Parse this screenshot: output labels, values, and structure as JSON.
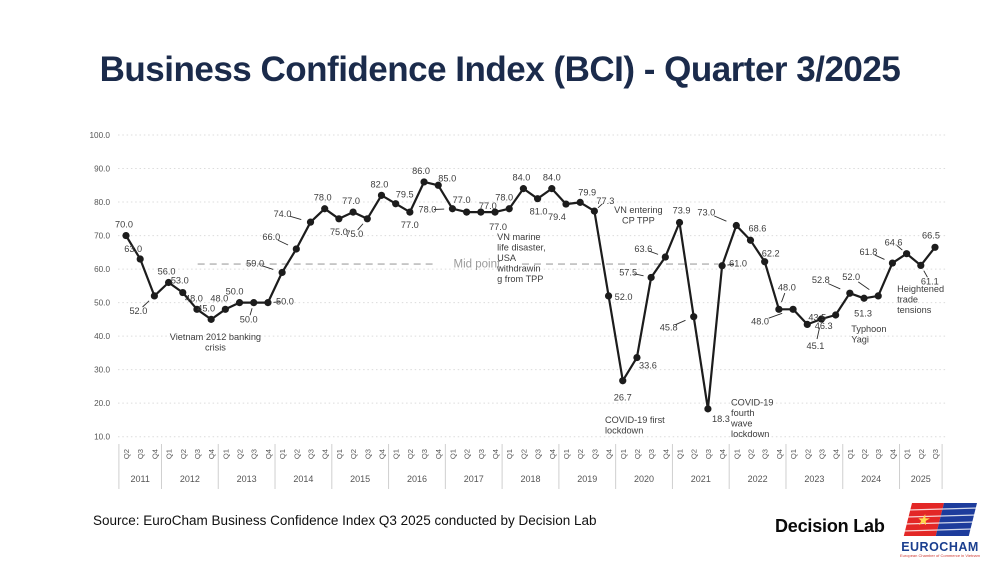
{
  "title": "Business Confidence Index (BCI) - Quarter 3/2025",
  "source_text": "Source: EuroCham Business Confidence Index Q3 2025 conducted by Decision Lab",
  "footer": {
    "decision_lab": "Decision Lab",
    "eurocham": "EUROCHAM",
    "eurocham_tagline": "European Chamber of Commerce in Vietnam"
  },
  "colors": {
    "title": "#1b2b4b",
    "line": "#1c1c1c",
    "point": "#1c1c1c",
    "data_label": "#3d3d3d",
    "annotation": "#3c3c3c",
    "grid": "#dcdcdc",
    "axis_text": "#555555",
    "year_separator": "#cfcfcf",
    "midline": "#bdbdbd",
    "midline_text": "#9b9b9b",
    "eurocham_blue": "#1b3f8f",
    "flag_red": "#e32726",
    "flag_yellow": "#ffd84d",
    "flag_blue": "#1d3c9c",
    "tagline_red": "#d03a32"
  },
  "chart_data": {
    "type": "line",
    "title": "Business Confidence Index (BCI) - Quarter 3/2025",
    "xlabel": "",
    "ylabel": "",
    "ylim": [
      10,
      100
    ],
    "yticks": [
      100,
      90,
      80,
      70,
      60,
      50,
      40,
      30,
      20,
      10
    ],
    "grid": "dotted-horizontal",
    "legend": "none",
    "midline": {
      "label": "Mid point",
      "value": 61.5,
      "segments": [
        [
          5.05,
          21.6
        ],
        [
          27.9,
          41.75
        ]
      ],
      "label_x": 24.72
    },
    "years": [
      {
        "label": "2011",
        "quarters": [
          "Q2",
          "Q3",
          "Q4"
        ]
      },
      {
        "label": "2012",
        "quarters": [
          "Q1",
          "Q2",
          "Q3",
          "Q4"
        ]
      },
      {
        "label": "2013",
        "quarters": [
          "Q1",
          "Q2",
          "Q3",
          "Q4"
        ]
      },
      {
        "label": "2014",
        "quarters": [
          "Q1",
          "Q2",
          "Q3",
          "Q4"
        ]
      },
      {
        "label": "2015",
        "quarters": [
          "Q1",
          "Q2",
          "Q3",
          "Q4"
        ]
      },
      {
        "label": "2016",
        "quarters": [
          "Q1",
          "Q2",
          "Q3",
          "Q4"
        ]
      },
      {
        "label": "2017",
        "quarters": [
          "Q1",
          "Q2",
          "Q3",
          "Q4"
        ]
      },
      {
        "label": "2018",
        "quarters": [
          "Q1",
          "Q2",
          "Q3",
          "Q4"
        ]
      },
      {
        "label": "2019",
        "quarters": [
          "Q1",
          "Q2",
          "Q3",
          "Q4"
        ]
      },
      {
        "label": "2020",
        "quarters": [
          "Q1",
          "Q2",
          "Q3",
          "Q4"
        ]
      },
      {
        "label": "2021",
        "quarters": [
          "Q1",
          "Q2",
          "Q3",
          "Q4"
        ]
      },
      {
        "label": "2022",
        "quarters": [
          "Q1",
          "Q2",
          "Q3",
          "Q4"
        ]
      },
      {
        "label": "2023",
        "quarters": [
          "Q1",
          "Q2",
          "Q3",
          "Q4"
        ]
      },
      {
        "label": "2024",
        "quarters": [
          "Q1",
          "Q2",
          "Q3",
          "Q4"
        ]
      },
      {
        "label": "2025",
        "quarters": [
          "Q1",
          "Q2",
          "Q3"
        ]
      }
    ],
    "points": [
      {
        "x": "Q2 2011",
        "v": 70.0,
        "o": [
          -2,
          -11
        ]
      },
      {
        "x": "Q3 2011",
        "v": 63.0,
        "o": [
          -7,
          -10
        ]
      },
      {
        "x": "Q4 2011",
        "v": 52.0,
        "o": [
          -16,
          15
        ],
        "ln": true
      },
      {
        "x": "Q1 2012",
        "v": 56.0,
        "o": [
          -2,
          -11
        ]
      },
      {
        "x": "Q2 2012",
        "v": 53.0,
        "o": [
          -3,
          -12
        ]
      },
      {
        "x": "Q3 2012",
        "v": 48.0,
        "o": [
          -3,
          -11
        ]
      },
      {
        "x": "Q4 2012",
        "v": 45.0,
        "o": [
          -5,
          -11
        ]
      },
      {
        "x": "Q1 2013",
        "v": 48.0,
        "o": [
          -6,
          -11
        ]
      },
      {
        "x": "Q2 2013",
        "v": 50.0,
        "o": [
          -5,
          -11
        ]
      },
      {
        "x": "Q3 2013",
        "v": 50.0,
        "o": [
          -5,
          17
        ],
        "ln": true
      },
      {
        "x": "Q4 2013",
        "v": 50.0,
        "o": [
          17,
          -1
        ],
        "ln": true
      },
      {
        "x": "Q1 2014",
        "v": 59.0,
        "o": [
          -27,
          -9
        ],
        "ln": true
      },
      {
        "x": "Q2 2014",
        "v": 66.0,
        "o": [
          -25,
          -12
        ],
        "ln": true
      },
      {
        "x": "Q3 2014",
        "v": 74.0,
        "o": [
          -28,
          -8
        ],
        "ln": true
      },
      {
        "x": "Q4 2014",
        "v": 78.0,
        "o": [
          -2,
          -11
        ]
      },
      {
        "x": "Q1 2015",
        "v": 75.0,
        "o": [
          0,
          13
        ]
      },
      {
        "x": "Q2 2015",
        "v": 77.0,
        "o": [
          -2,
          -11
        ]
      },
      {
        "x": "Q3 2015",
        "v": 75.0,
        "o": [
          -13,
          15
        ],
        "ln": true
      },
      {
        "x": "Q4 2015",
        "v": 82.0,
        "o": [
          -2,
          -11
        ]
      },
      {
        "x": "Q1 2016",
        "v": 79.5,
        "o": [
          9,
          -9
        ]
      },
      {
        "x": "Q2 2016",
        "v": 77.0,
        "o": [
          0,
          13
        ]
      },
      {
        "x": "Q3 2016",
        "v": 86.0,
        "o": [
          -3,
          -11
        ]
      },
      {
        "x": "Q4 2016",
        "v": 85.0,
        "o": [
          9,
          -7
        ]
      },
      {
        "x": "Q1 2017",
        "v": 78.0,
        "o": [
          -25,
          1
        ],
        "ln": true
      },
      {
        "x": "Q2 2017",
        "v": 77.0,
        "o": [
          -5,
          -12
        ]
      },
      {
        "x": "Q3 2017",
        "v": 77.0,
        "o": [
          7,
          -6
        ]
      },
      {
        "x": "Q4 2017",
        "v": 77.0,
        "o": [
          3,
          15
        ]
      },
      {
        "x": "Q1 2018",
        "v": 78.0,
        "o": [
          -5,
          -11
        ]
      },
      {
        "x": "Q2 2018",
        "v": 84.0,
        "o": [
          -2,
          -11
        ]
      },
      {
        "x": "Q3 2018",
        "v": 81.0,
        "o": [
          1,
          13
        ]
      },
      {
        "x": "Q4 2018",
        "v": 84.0,
        "o": [
          0,
          -11
        ]
      },
      {
        "x": "Q1 2019",
        "v": 79.4,
        "o": [
          -9,
          13
        ]
      },
      {
        "x": "Q2 2019",
        "v": 79.9,
        "o": [
          7,
          -10
        ]
      },
      {
        "x": "Q3 2019",
        "v": 77.3,
        "o": [
          11,
          -10
        ],
        "ln": true
      },
      {
        "x": "Q4 2019",
        "v": 52.0,
        "o": [
          15,
          1
        ]
      },
      {
        "x": "Q1 2020",
        "v": 26.7,
        "o": [
          0,
          17
        ]
      },
      {
        "x": "Q2 2020",
        "v": 33.6,
        "o": [
          11,
          8
        ]
      },
      {
        "x": "Q3 2020",
        "v": 57.5,
        "o": [
          -23,
          -5
        ],
        "ln": true
      },
      {
        "x": "Q4 2020",
        "v": 63.6,
        "o": [
          -22,
          -8
        ],
        "ln": true
      },
      {
        "x": "Q1 2021",
        "v": 73.9,
        "o": [
          2,
          -12
        ]
      },
      {
        "x": "Q2 2021",
        "v": 45.8,
        "o": [
          -25,
          11
        ],
        "ln": true
      },
      {
        "x": "Q3 2021",
        "v": 18.3,
        "o": [
          13,
          10
        ]
      },
      {
        "x": "Q4 2021",
        "v": 61.0,
        "o": [
          16,
          -2
        ],
        "ln": true
      },
      {
        "x": "Q1 2022",
        "v": 73.0,
        "o": [
          -30,
          -13
        ],
        "ln": true
      },
      {
        "x": "Q2 2022",
        "v": 68.6,
        "o": [
          7,
          -12
        ]
      },
      {
        "x": "Q3 2022",
        "v": 62.2,
        "o": [
          6,
          -8
        ]
      },
      {
        "x": "Q4 2022",
        "v": 48.0,
        "o": [
          8,
          -22
        ],
        "ln": true
      },
      {
        "x": "Q1 2023",
        "v": 48.0,
        "o": [
          -33,
          12
        ],
        "ln": true
      },
      {
        "x": "Q2 2023",
        "v": 43.5,
        "o": [
          10,
          -7
        ]
      },
      {
        "x": "Q3 2023",
        "v": 45.1,
        "o": [
          -6,
          27
        ],
        "ln": true
      },
      {
        "x": "Q4 2023",
        "v": 46.3,
        "o": [
          -12,
          11
        ]
      },
      {
        "x": "Q1 2024",
        "v": 52.8,
        "o": [
          -29,
          -13
        ],
        "ln": true
      },
      {
        "x": "Q2 2024",
        "v": 51.3,
        "o": [
          -1,
          15
        ]
      },
      {
        "x": "Q3 2024",
        "v": 52.0,
        "o": [
          -27,
          -19
        ],
        "ln": true
      },
      {
        "x": "Q4 2024",
        "v": 61.8,
        "o": [
          -24,
          -11
        ],
        "ln": true
      },
      {
        "x": "Q1 2025",
        "v": 64.6,
        "o": [
          -13,
          -11
        ],
        "ln": true
      },
      {
        "x": "Q2 2025",
        "v": 61.1,
        "o": [
          9,
          16
        ],
        "ln": true
      },
      {
        "x": "Q3 2025",
        "v": 66.5,
        "o": [
          -4,
          -12
        ]
      }
    ],
    "annotations": [
      {
        "lines": [
          "Vietnam 2012 banking",
          "crisis"
        ],
        "x": 6.3,
        "v": 38.8,
        "align": "center"
      },
      {
        "lines": [
          "VN marine",
          "life disaster,",
          "USA",
          "withdrawin",
          "g from TPP"
        ],
        "x": 26.15,
        "v": 68.7,
        "align": "left"
      },
      {
        "lines": [
          "VN entering",
          "CP TPP"
        ],
        "x": 36.1,
        "v": 76.7,
        "align": "center"
      },
      {
        "lines": [
          "COVID-19 first",
          "lockdown"
        ],
        "x": 33.75,
        "v": 14.1,
        "align": "left"
      },
      {
        "lines": [
          "COVID-19",
          "fourth",
          "wave",
          "lockdown"
        ],
        "x": 42.63,
        "v": 19.3,
        "align": "left"
      },
      {
        "lines": [
          "Typhoon",
          "Yagi"
        ],
        "x": 51.1,
        "v": 41.3,
        "align": "left"
      },
      {
        "lines": [
          "Heightened",
          "trade",
          "tensions"
        ],
        "x": 54.33,
        "v": 53.1,
        "align": "left"
      }
    ]
  }
}
